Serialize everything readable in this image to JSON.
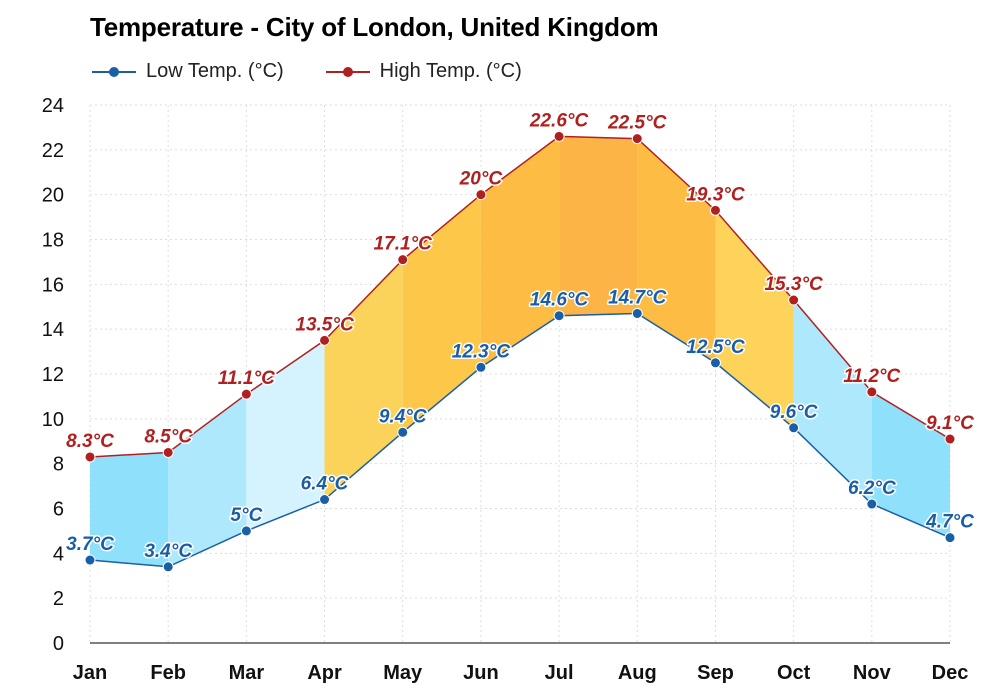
{
  "chart_data": {
    "type": "line",
    "title": "Temperature - City of London, United Kingdom",
    "categories": [
      "Jan",
      "Feb",
      "Mar",
      "Apr",
      "May",
      "Jun",
      "Jul",
      "Aug",
      "Sep",
      "Oct",
      "Nov",
      "Dec"
    ],
    "series": [
      {
        "name": "Low Temp. (°C)",
        "color": "#1a5ea8",
        "values": [
          3.7,
          3.4,
          5,
          6.4,
          9.4,
          12.3,
          14.6,
          14.7,
          12.5,
          9.6,
          6.2,
          4.7
        ],
        "labels": [
          "3.7°C",
          "3.4°C",
          "5°C",
          "6.4°C",
          "9.4°C",
          "12.3°C",
          "14.6°C",
          "14.7°C",
          "12.5°C",
          "9.6°C",
          "6.2°C",
          "4.7°C"
        ]
      },
      {
        "name": "High Temp. (°C)",
        "color": "#b02020",
        "values": [
          8.3,
          8.5,
          11.1,
          13.5,
          17.1,
          20,
          22.6,
          22.5,
          19.3,
          15.3,
          11.2,
          9.1
        ],
        "labels": [
          "8.3°C",
          "8.5°C",
          "11.1°C",
          "13.5°C",
          "17.1°C",
          "20°C",
          "22.6°C",
          "22.5°C",
          "19.3°C",
          "15.3°C",
          "11.2°C",
          "9.1°C"
        ]
      }
    ],
    "y_ticks": [
      "0",
      "2",
      "4",
      "6",
      "8",
      "10",
      "12",
      "14",
      "16",
      "18",
      "20",
      "22",
      "24"
    ],
    "ylim": [
      0,
      24
    ],
    "grid": true,
    "legend_position": "top-left",
    "band_colors": [
      "#8ee0fb",
      "#aee8fc",
      "#d5f3fe",
      "#fcd35a",
      "#fdc84a",
      "#fdbd44",
      "#fcb447",
      "#fdbd44",
      "#fdd35a",
      "#aee8fc",
      "#8ee0fb",
      "#aee8fc"
    ]
  }
}
